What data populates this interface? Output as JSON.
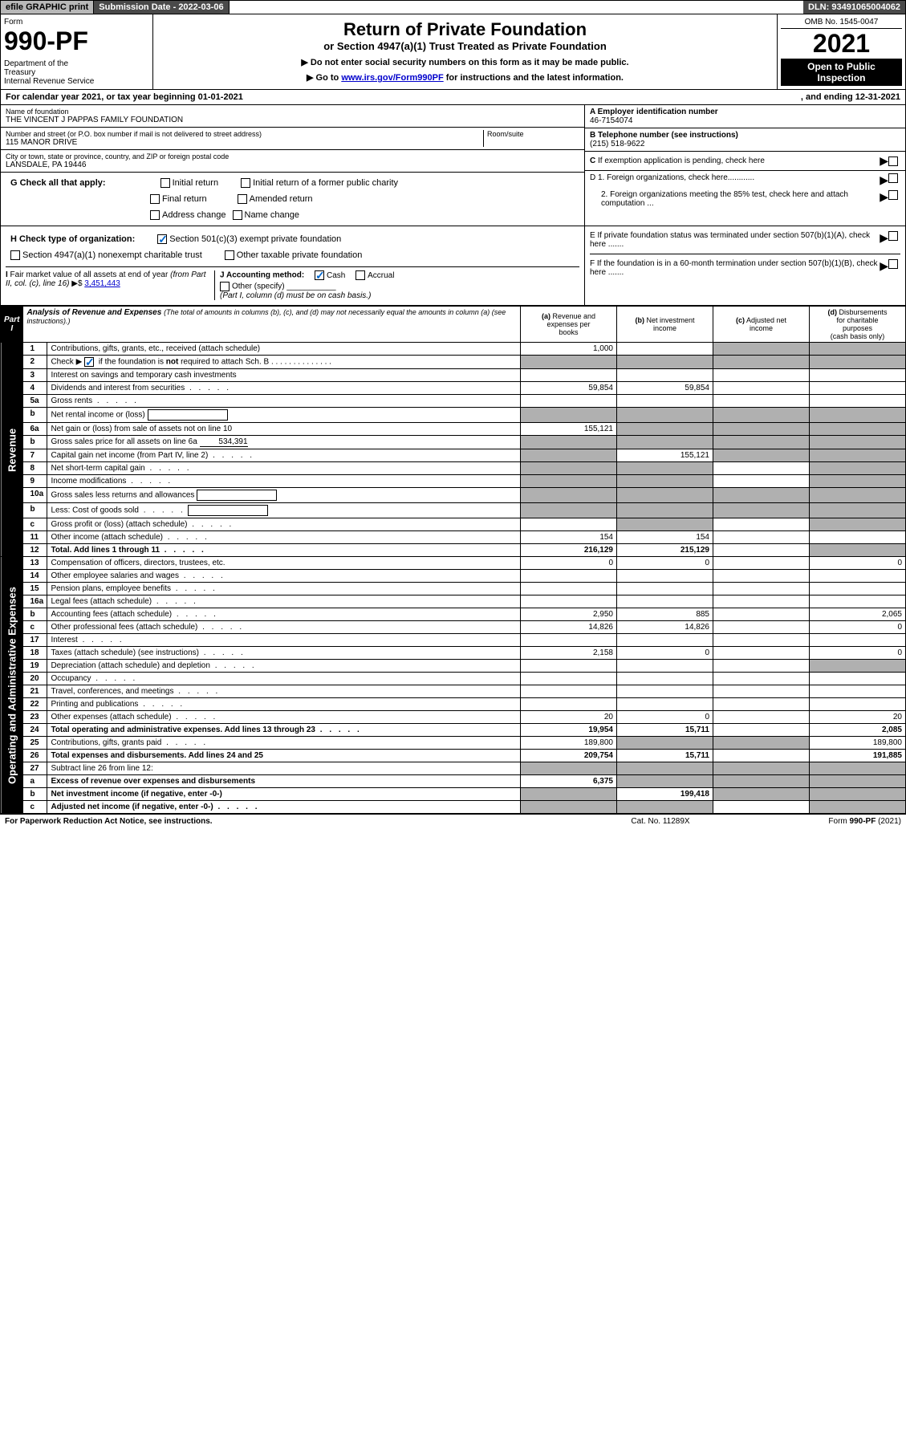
{
  "topbar": {
    "efile": "efile GRAPHIC print",
    "submission": "Submission Date - 2022-03-06",
    "dln": "DLN: 93491065004062"
  },
  "header": {
    "form_label": "Form",
    "form_num": "990-PF",
    "dept": "Department of the Treasury\nInternal Revenue Service",
    "title": "Return of Private Foundation",
    "subtitle": "or Section 4947(a)(1) Trust Treated as Private Foundation",
    "instr1": "▶ Do not enter social security numbers on this form as it may be made public.",
    "instr2_pre": "▶ Go to ",
    "instr2_link": "www.irs.gov/Form990PF",
    "instr2_post": " for instructions and the latest information.",
    "omb": "OMB No. 1545-0047",
    "year": "2021",
    "open": "Open to Public Inspection"
  },
  "cal_year": {
    "left": "For calendar year 2021, or tax year beginning 01-01-2021",
    "right": ", and ending 12-31-2021"
  },
  "info": {
    "name_label": "Name of foundation",
    "name": "THE VINCENT J PAPPAS FAMILY FOUNDATION",
    "addr_label": "Number and street (or P.O. box number if mail is not delivered to street address)",
    "addr": "115 MANOR DRIVE",
    "room_label": "Room/suite",
    "city_label": "City or town, state or province, country, and ZIP or foreign postal code",
    "city": "LANSDALE, PA  19446",
    "ein_label": "A Employer identification number",
    "ein": "46-7154074",
    "tel_label": "B Telephone number (see instructions)",
    "tel": "(215) 518-9622",
    "c_label": "C If exemption application is pending, check here",
    "d1": "D 1. Foreign organizations, check here............",
    "d2": "2. Foreign organizations meeting the 85% test, check here and attach computation ...",
    "e_label": "E  If private foundation status was terminated under section 507(b)(1)(A), check here .......",
    "f_label": "F  If the foundation is in a 60-month termination under section 507(b)(1)(B), check here ......."
  },
  "g": {
    "label": "G Check all that apply:",
    "opts": [
      "Initial return",
      "Initial return of a former public charity",
      "Final return",
      "Amended return",
      "Address change",
      "Name change"
    ]
  },
  "h": {
    "label": "H Check type of organization:",
    "opt1": "Section 501(c)(3) exempt private foundation",
    "opt2": "Section 4947(a)(1) nonexempt charitable trust",
    "opt3": "Other taxable private foundation"
  },
  "i": {
    "label": "I Fair market value of all assets at end of year (from Part II, col. (c), line 16) ▶$ ",
    "value": "3,451,443"
  },
  "j": {
    "label": "J Accounting method:",
    "cash": "Cash",
    "accrual": "Accrual",
    "other": "Other (specify)",
    "note": "(Part I, column (d) must be on cash basis.)"
  },
  "part1": {
    "label": "Part I",
    "title": "Analysis of Revenue and Expenses",
    "title_note": "(The total of amounts in columns (b), (c), and (d) may not necessarily equal the amounts in column (a) (see instructions).)",
    "cols": {
      "a": "(a) Revenue and expenses per books",
      "b": "(b) Net investment income",
      "c": "(c) Adjusted net income",
      "d": "(d) Disbursements for charitable purposes (cash basis only)"
    }
  },
  "sides": {
    "revenue": "Revenue",
    "operating": "Operating and Administrative Expenses"
  },
  "rows": [
    {
      "n": "1",
      "desc": "Contributions, gifts, grants, etc., received (attach schedule)",
      "a": "1,000",
      "shade_cd": true
    },
    {
      "n": "2",
      "desc": "Check ▶ ☑ if the foundation is not required to attach Sch. B",
      "dots": true,
      "shade_all": true
    },
    {
      "n": "3",
      "desc": "Interest on savings and temporary cash investments"
    },
    {
      "n": "4",
      "desc": "Dividends and interest from securities",
      "dots": true,
      "a": "59,854",
      "b": "59,854"
    },
    {
      "n": "5a",
      "desc": "Gross rents",
      "dots": true
    },
    {
      "n": "b",
      "desc": "Net rental income or (loss)",
      "inline_box": true,
      "shade_abcd": true
    },
    {
      "n": "6a",
      "desc": "Net gain or (loss) from sale of assets not on line 10",
      "a": "155,121",
      "shade_bcd": true
    },
    {
      "n": "b",
      "desc": "Gross sales price for all assets on line 6a",
      "inline_val": "534,391",
      "shade_abcd": true
    },
    {
      "n": "7",
      "desc": "Capital gain net income (from Part IV, line 2)",
      "dots": true,
      "b": "155,121",
      "shade_a": true,
      "shade_cd": true
    },
    {
      "n": "8",
      "desc": "Net short-term capital gain",
      "dots": true,
      "shade_ab": true,
      "shade_d": true
    },
    {
      "n": "9",
      "desc": "Income modifications",
      "dots": true,
      "shade_ab": true,
      "shade_d": true
    },
    {
      "n": "10a",
      "desc": "Gross sales less returns and allowances",
      "inline_box": true,
      "shade_abcd": true
    },
    {
      "n": "b",
      "desc": "Less: Cost of goods sold",
      "dots": true,
      "inline_box": true,
      "shade_abcd": true
    },
    {
      "n": "c",
      "desc": "Gross profit or (loss) (attach schedule)",
      "dots": true,
      "shade_b": true,
      "shade_d": true
    },
    {
      "n": "11",
      "desc": "Other income (attach schedule)",
      "dots": true,
      "a": "154",
      "b": "154"
    },
    {
      "n": "12",
      "desc": "Total. Add lines 1 through 11",
      "dots": true,
      "bold": true,
      "a": "216,129",
      "b": "215,129",
      "shade_d": true
    },
    {
      "n": "13",
      "desc": "Compensation of officers, directors, trustees, etc.",
      "a": "0",
      "b": "0",
      "d": "0"
    },
    {
      "n": "14",
      "desc": "Other employee salaries and wages",
      "dots": true
    },
    {
      "n": "15",
      "desc": "Pension plans, employee benefits",
      "dots": true
    },
    {
      "n": "16a",
      "desc": "Legal fees (attach schedule)",
      "dots": true
    },
    {
      "n": "b",
      "desc": "Accounting fees (attach schedule)",
      "dots": true,
      "a": "2,950",
      "b": "885",
      "d": "2,065"
    },
    {
      "n": "c",
      "desc": "Other professional fees (attach schedule)",
      "dots": true,
      "a": "14,826",
      "b": "14,826",
      "d": "0"
    },
    {
      "n": "17",
      "desc": "Interest",
      "dots": true
    },
    {
      "n": "18",
      "desc": "Taxes (attach schedule) (see instructions)",
      "dots": true,
      "a": "2,158",
      "b": "0",
      "d": "0"
    },
    {
      "n": "19",
      "desc": "Depreciation (attach schedule) and depletion",
      "dots": true,
      "shade_d": true
    },
    {
      "n": "20",
      "desc": "Occupancy",
      "dots": true
    },
    {
      "n": "21",
      "desc": "Travel, conferences, and meetings",
      "dots": true
    },
    {
      "n": "22",
      "desc": "Printing and publications",
      "dots": true
    },
    {
      "n": "23",
      "desc": "Other expenses (attach schedule)",
      "dots": true,
      "a": "20",
      "b": "0",
      "d": "20"
    },
    {
      "n": "24",
      "desc": "Total operating and administrative expenses. Add lines 13 through 23",
      "dots": true,
      "bold": true,
      "a": "19,954",
      "b": "15,711",
      "d": "2,085"
    },
    {
      "n": "25",
      "desc": "Contributions, gifts, grants paid",
      "dots": true,
      "a": "189,800",
      "shade_bc": true,
      "d": "189,800"
    },
    {
      "n": "26",
      "desc": "Total expenses and disbursements. Add lines 24 and 25",
      "bold": true,
      "a": "209,754",
      "b": "15,711",
      "d": "191,885"
    },
    {
      "n": "27",
      "desc": "Subtract line 26 from line 12:",
      "shade_abcd": true
    },
    {
      "n": "a",
      "desc": "Excess of revenue over expenses and disbursements",
      "bold": true,
      "a": "6,375",
      "shade_bcd": true
    },
    {
      "n": "b",
      "desc": "Net investment income (if negative, enter -0-)",
      "bold": true,
      "b": "199,418",
      "shade_a": true,
      "shade_cd": true
    },
    {
      "n": "c",
      "desc": "Adjusted net income (if negative, enter -0-)",
      "dots": true,
      "bold": true,
      "shade_ab": true,
      "shade_d": true
    }
  ],
  "footer": {
    "left": "For Paperwork Reduction Act Notice, see instructions.",
    "mid": "Cat. No. 11289X",
    "right": "Form 990-PF (2021)"
  }
}
